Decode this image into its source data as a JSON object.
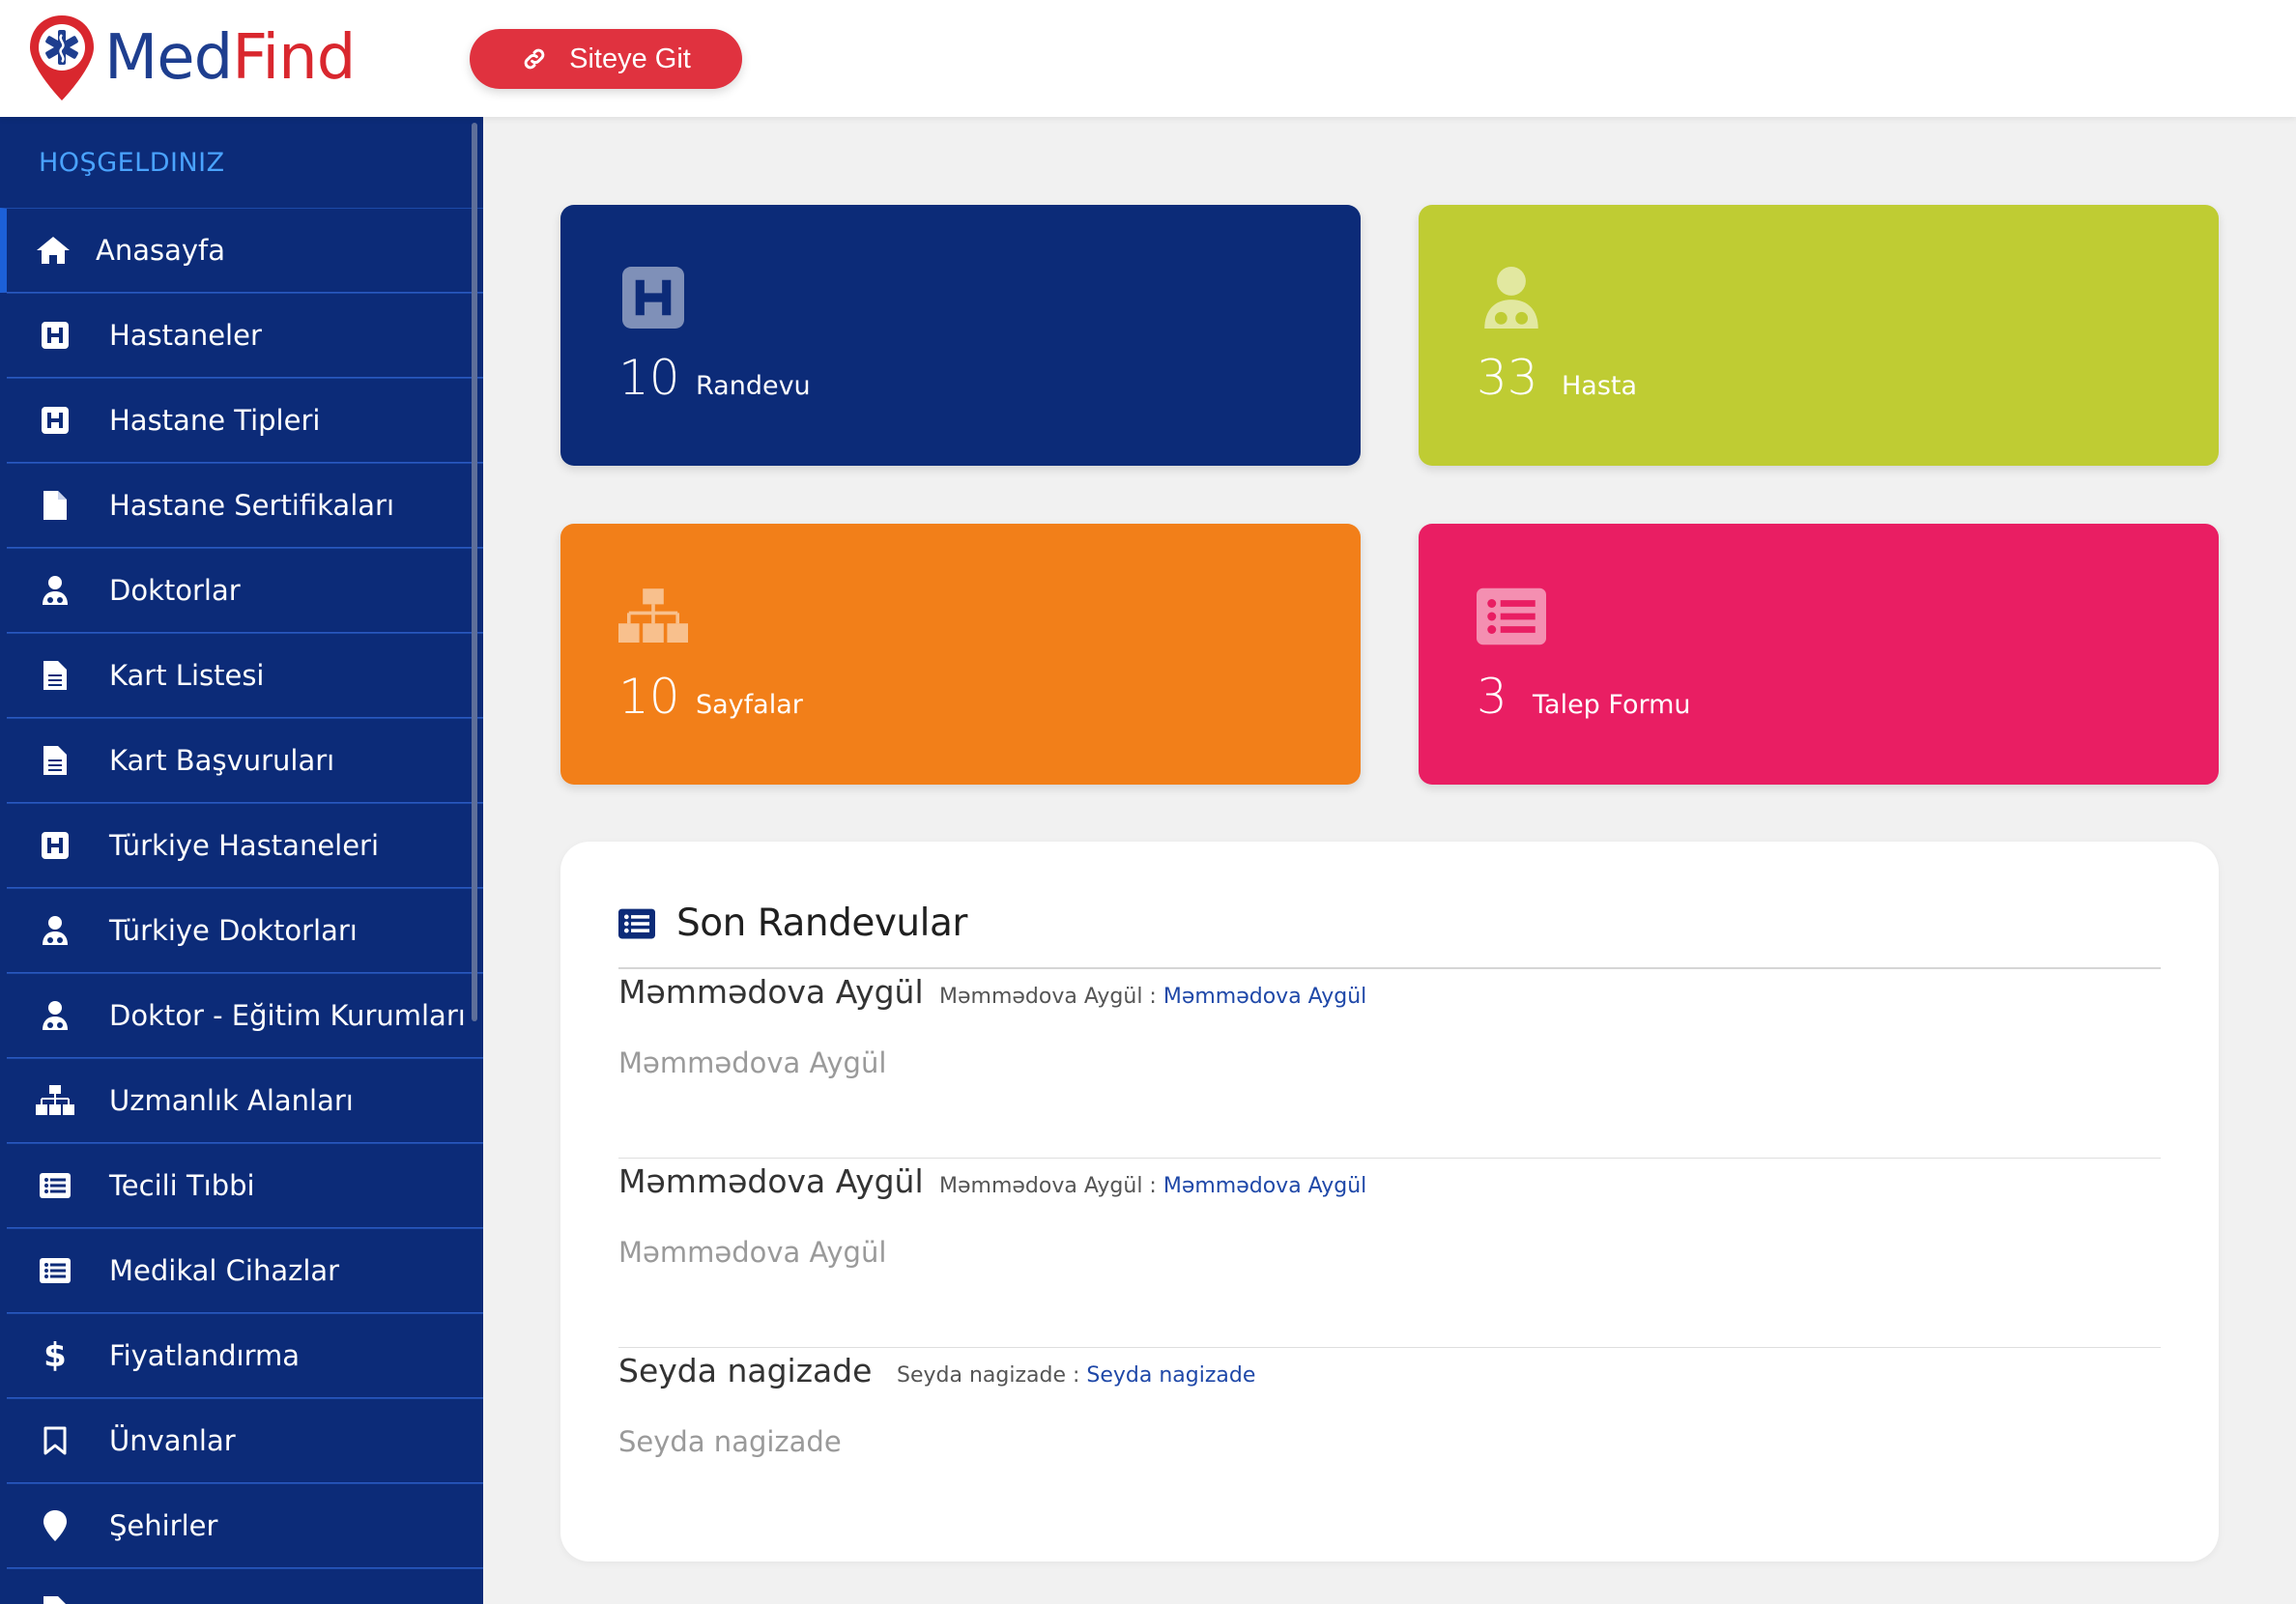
{
  "header": {
    "logo_part1": "Med",
    "logo_part2": "Find",
    "site_button_label": "Siteye Git"
  },
  "sidebar": {
    "welcome": "HOŞGELDINIZ",
    "items": [
      {
        "label": "Anasayfa",
        "icon": "home-icon"
      },
      {
        "label": "Hastaneler",
        "icon": "hospital-icon"
      },
      {
        "label": "Hastane Tipleri",
        "icon": "hospital-icon"
      },
      {
        "label": "Hastane Sertifikaları",
        "icon": "file-icon"
      },
      {
        "label": "Doktorlar",
        "icon": "doctor-icon"
      },
      {
        "label": "Kart Listesi",
        "icon": "file-text-icon"
      },
      {
        "label": "Kart Başvuruları",
        "icon": "file-text-icon"
      },
      {
        "label": "Türkiye Hastaneleri",
        "icon": "hospital-icon"
      },
      {
        "label": "Türkiye Doktorları",
        "icon": "doctor-icon"
      },
      {
        "label": "Doktor - Eğitim Kurumları",
        "icon": "doctor-icon"
      },
      {
        "label": "Uzmanlık Alanları",
        "icon": "sitemap-icon"
      },
      {
        "label": "Tecili Tıbbi",
        "icon": "list-alt-icon"
      },
      {
        "label": "Medikal Cihazlar",
        "icon": "list-alt-icon"
      },
      {
        "label": "Fiyatlandırma",
        "icon": "dollar-icon"
      },
      {
        "label": "Ünvanlar",
        "icon": "bookmark-icon"
      },
      {
        "label": "Şehirler",
        "icon": "map-marker-icon"
      },
      {
        "label": "",
        "icon": "file-text-icon"
      }
    ]
  },
  "stats": [
    {
      "count": "10",
      "label": "Randevu",
      "icon": "hospital-icon",
      "color": "#0c2b78"
    },
    {
      "count": "33",
      "label": "Hasta",
      "icon": "doctor-icon",
      "color": "#bfcc33"
    },
    {
      "count": "10",
      "label": "Sayfalar",
      "icon": "sitemap-icon",
      "color": "#f27f19"
    },
    {
      "count": "3",
      "label": "Talep Formu",
      "icon": "list-alt-icon",
      "color": "#e91e63"
    }
  ],
  "recent": {
    "title": "Son Randevular",
    "entries": [
      {
        "name": "Məmmədova Aygül",
        "meta_prefix": "Məmmədova Aygül :",
        "meta_link": "Məmmədova Aygül",
        "subtitle": "Məmmədova Aygül"
      },
      {
        "name": "Məmmədova Aygül",
        "meta_prefix": "Məmmədova Aygül :",
        "meta_link": "Məmmədova Aygül",
        "subtitle": "Məmmədova Aygül"
      },
      {
        "name": "Seyda nagizade",
        "meta_prefix": "Seyda nagizade :",
        "meta_link": "Seyda nagizade",
        "subtitle": "Seyda nagizade"
      }
    ]
  },
  "colors": {
    "brand_blue": "#1e3e8f",
    "brand_red": "#d9272e",
    "sidebar_bg": "#0c2b78",
    "link_blue": "#1f48a8"
  }
}
